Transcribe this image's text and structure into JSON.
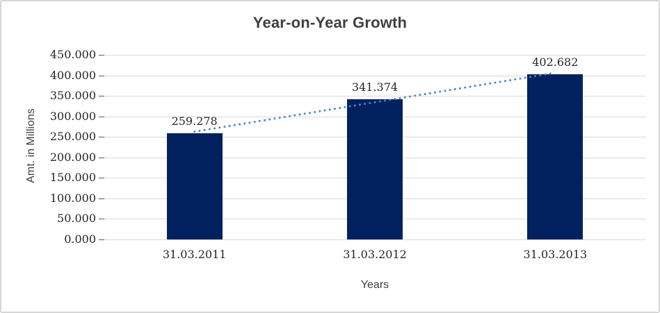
{
  "chart_data": {
    "type": "bar",
    "title": "Year-on-Year Growth",
    "xlabel": "Years",
    "ylabel": "Amt. in Millions",
    "categories": [
      "31.03.2011",
      "31.03.2012",
      "31.03.2013"
    ],
    "values": [
      259.278,
      341.374,
      402.682
    ],
    "value_labels": [
      "259.278",
      "341.374",
      "402.682"
    ],
    "ylim": [
      0,
      450
    ],
    "y_ticks": [
      {
        "value": 0,
        "label": "0.000"
      },
      {
        "value": 50,
        "label": "50.000"
      },
      {
        "value": 100,
        "label": "100.000"
      },
      {
        "value": 150,
        "label": "150.000"
      },
      {
        "value": 200,
        "label": "200.000"
      },
      {
        "value": 250,
        "label": "250.000"
      },
      {
        "value": 300,
        "label": "300.000"
      },
      {
        "value": 350,
        "label": "350.000"
      },
      {
        "value": 400,
        "label": "400.000"
      },
      {
        "value": 450,
        "label": "450.000"
      }
    ],
    "grid": true,
    "legend": "none",
    "trendline": {
      "type": "linear",
      "style": "dotted"
    },
    "colors": {
      "bar": "#00215e",
      "trendline": "#4a86c8",
      "gridline": "#d9d9d9",
      "tick_mark": "#595959",
      "title_text": "#404040",
      "axis_title_text": "#404040",
      "tick_text": "#262626",
      "border": "#d6d6d6"
    }
  }
}
